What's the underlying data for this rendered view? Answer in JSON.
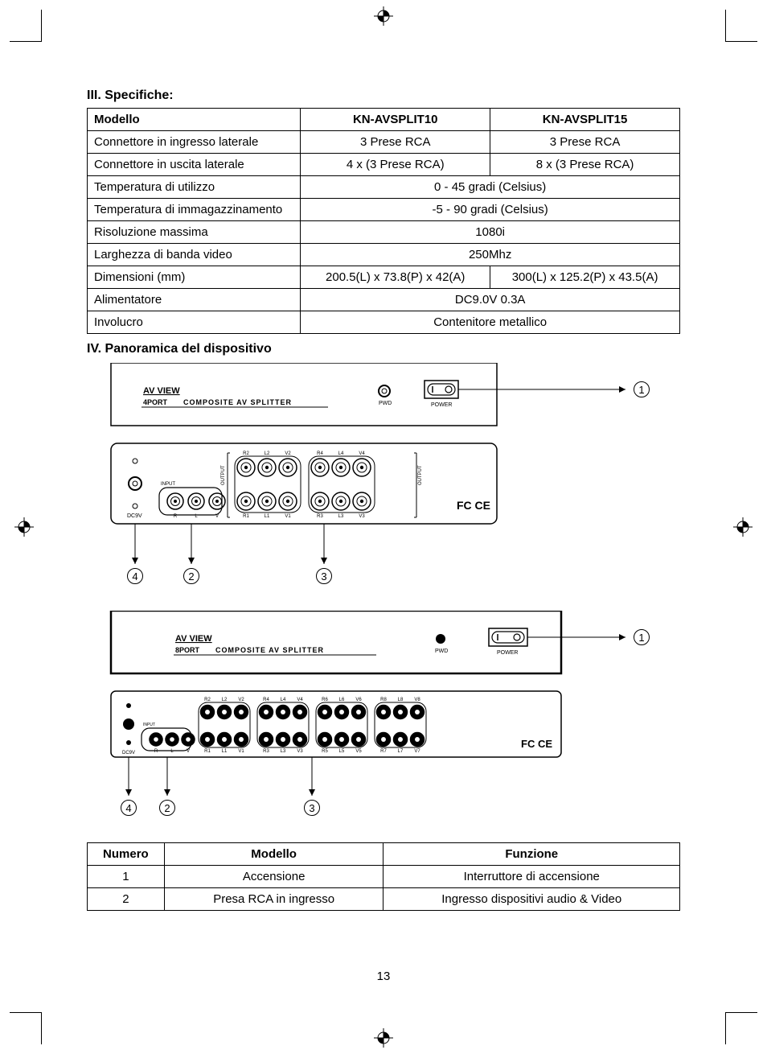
{
  "page_number": "13",
  "section3": {
    "title": "III. Specifiche:",
    "headers": [
      "Modello",
      "KN-AVSPLIT10",
      "KN-AVSPLIT15"
    ],
    "rows": [
      {
        "label": "Connettore in ingresso laterale",
        "vals": [
          "3 Prese RCA",
          "3 Prese RCA"
        ],
        "span": false
      },
      {
        "label": "Connettore in uscita laterale",
        "vals": [
          "4 x (3 Prese RCA)",
          "8 x (3 Prese RCA)"
        ],
        "span": false
      },
      {
        "label": "Temperatura di utilizzo",
        "vals": [
          "0 - 45 gradi (Celsius)"
        ],
        "span": true
      },
      {
        "label": "Temperatura di immagazzinamento",
        "vals": [
          "-5 - 90 gradi (Celsius)"
        ],
        "span": true
      },
      {
        "label": "Risoluzione massima",
        "vals": [
          "1080i"
        ],
        "span": true
      },
      {
        "label": "Larghezza di banda video",
        "vals": [
          "250Mhz"
        ],
        "span": true
      },
      {
        "label": "Dimensioni (mm)",
        "vals": [
          "200.5(L) x 73.8(P) x 42(A)",
          "300(L) x 125.2(P) x 43.5(A)"
        ],
        "span": false
      },
      {
        "label": "Alimentatore",
        "vals": [
          "DC9.0V 0.3A"
        ],
        "span": true
      },
      {
        "label": "Involucro",
        "vals": [
          "Contenitore metallico"
        ],
        "span": true
      }
    ],
    "col_widths": [
      "36%",
      "32%",
      "32%"
    ]
  },
  "section4": {
    "title": "IV. Panoramica del dispositivo",
    "device_title": "AV VIEW",
    "device_subtitle": "COMPOSITE AV SPLITTER",
    "port4_label": "4PORT",
    "port8_label": "8PORT",
    "pwd_label": "PWD",
    "power_label": "POWER",
    "input_label": "INPUT",
    "output_label": "OUTPUT",
    "dc_label": "DC9V",
    "fc_label": "FC",
    "ce_label": "CE",
    "jack_labels_top_4": [
      "R2",
      "L2",
      "V2",
      "R4",
      "L4",
      "V4"
    ],
    "jack_labels_bot_4": [
      "R",
      "L",
      "V",
      "R1",
      "L1",
      "V1",
      "R3",
      "L3",
      "V3"
    ],
    "jack_labels_top_8": [
      "R2",
      "L2",
      "V2",
      "R4",
      "L4",
      "V4",
      "R6",
      "L6",
      "V6",
      "R8",
      "L8",
      "V8"
    ],
    "jack_labels_bot_8": [
      "R",
      "L",
      "V",
      "R1",
      "L1",
      "V1",
      "R3",
      "L3",
      "V3",
      "R5",
      "L5",
      "V5",
      "R7",
      "L7",
      "V7"
    ],
    "callouts": [
      "1",
      "2",
      "3",
      "4"
    ]
  },
  "func_table": {
    "headers": [
      "Numero",
      "Modello",
      "Funzione"
    ],
    "rows": [
      [
        "1",
        "Accensione",
        "Interruttore di accensione"
      ],
      [
        "2",
        "Presa RCA in ingresso",
        "Ingresso dispositivi audio & Video"
      ]
    ],
    "col_widths": [
      "13%",
      "37%",
      "50%"
    ]
  },
  "colors": {
    "border": "#000000",
    "bg": "#ffffff",
    "text": "#000000"
  }
}
